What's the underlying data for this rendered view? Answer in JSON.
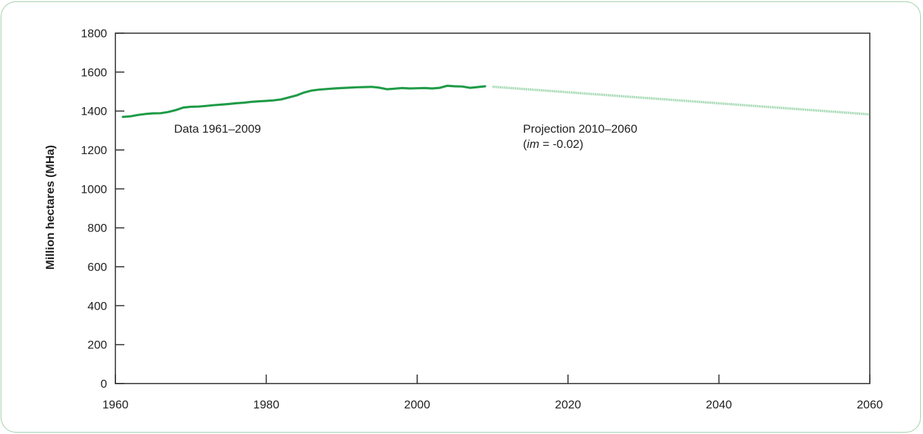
{
  "chart_data": {
    "type": "line",
    "title": "",
    "xlabel": "",
    "ylabel": "Million hectares (MHa)",
    "xlim": [
      1960,
      2060
    ],
    "ylim": [
      0,
      1800
    ],
    "xticks": [
      1960,
      1980,
      2000,
      2020,
      2040,
      2060
    ],
    "yticks": [
      0,
      200,
      400,
      600,
      800,
      1000,
      1200,
      1400,
      1600,
      1800
    ],
    "grid": false,
    "colors": {
      "data": "#1f9b47",
      "projection": "#8fd0a0"
    },
    "annotations": {
      "data_label": "Data 1961–2009",
      "projection_label": "Projection 2010–2060",
      "projection_param_open": "(",
      "projection_param_var": "im",
      "projection_param_rest": " = -0.02)"
    },
    "series": [
      {
        "style": "solid",
        "x": [
          1961,
          1962,
          1963,
          1964,
          1965,
          1966,
          1967,
          1968,
          1969,
          1970,
          1971,
          1972,
          1973,
          1974,
          1975,
          1976,
          1977,
          1978,
          1979,
          1980,
          1981,
          1982,
          1983,
          1984,
          1985,
          1986,
          1987,
          1988,
          1989,
          1990,
          1991,
          1992,
          1993,
          1994,
          1995,
          1996,
          1997,
          1998,
          1999,
          2000,
          2001,
          2002,
          2003,
          2004,
          2005,
          2006,
          2007,
          2008,
          2009
        ],
        "y": [
          1370,
          1373,
          1380,
          1385,
          1388,
          1389,
          1395,
          1405,
          1418,
          1422,
          1423,
          1426,
          1430,
          1433,
          1436,
          1440,
          1443,
          1447,
          1450,
          1452,
          1455,
          1460,
          1470,
          1480,
          1495,
          1505,
          1510,
          1513,
          1516,
          1518,
          1520,
          1522,
          1523,
          1524,
          1520,
          1512,
          1515,
          1518,
          1516,
          1517,
          1518,
          1516,
          1519,
          1530,
          1527,
          1526,
          1519,
          1523,
          1527
        ]
      },
      {
        "style": "dotted",
        "x": [
          2010,
          2060
        ],
        "y": [
          1525,
          1383
        ]
      }
    ]
  }
}
